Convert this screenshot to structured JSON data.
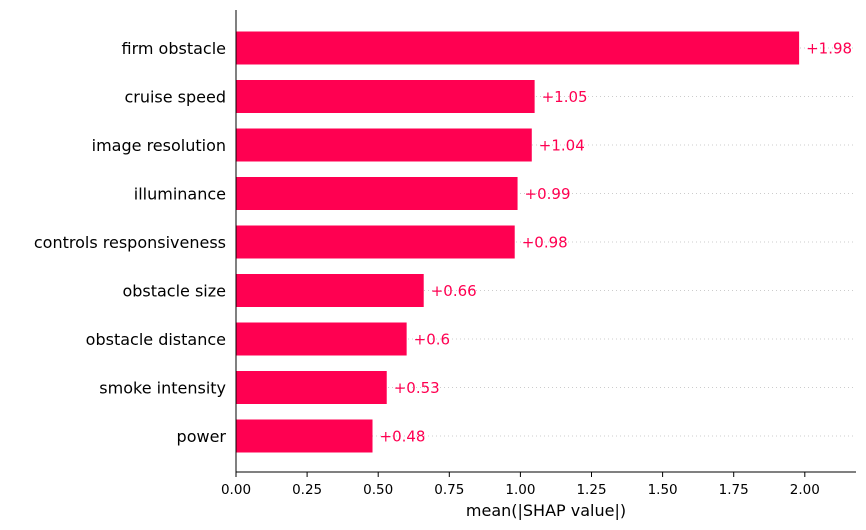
{
  "chart_data": {
    "type": "bar",
    "orientation": "horizontal",
    "title": "",
    "xlabel": "mean(|SHAP value|)",
    "ylabel": "",
    "xlim": [
      0,
      2.18
    ],
    "xticks": [
      "0.00",
      "0.25",
      "0.50",
      "0.75",
      "1.00",
      "1.25",
      "1.50",
      "1.75",
      "2.00"
    ],
    "categories": [
      "firm obstacle",
      "cruise speed",
      "image resolution",
      "illuminance",
      "controls responsiveness",
      "obstacle size",
      "obstacle distance",
      "smoke intensity",
      "power"
    ],
    "values": [
      1.98,
      1.05,
      1.04,
      0.99,
      0.98,
      0.66,
      0.6,
      0.53,
      0.48
    ],
    "value_labels": [
      "+1.98",
      "+1.05",
      "+1.04",
      "+0.99",
      "+0.98",
      "+0.66",
      "+0.6",
      "+0.53",
      "+0.48"
    ],
    "grid": "dotted row guides",
    "legend": "none",
    "bar_color": "#ff0051",
    "label_color": "#ff0051"
  }
}
